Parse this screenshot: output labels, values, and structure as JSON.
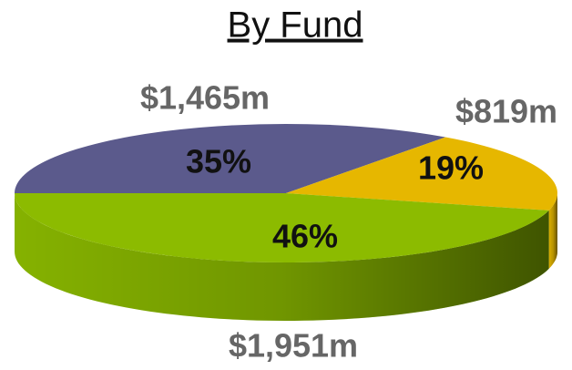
{
  "chart_data": {
    "type": "pie",
    "title": "By Fund",
    "values": [
      35,
      19,
      46
    ],
    "value_labels": [
      "35%",
      "19%",
      "46%"
    ],
    "outer_labels": [
      "$1,465m",
      "$819m",
      "$1,951m"
    ],
    "colors": [
      "#5b5a8c",
      "#e6b700",
      "#8cbb00"
    ]
  }
}
